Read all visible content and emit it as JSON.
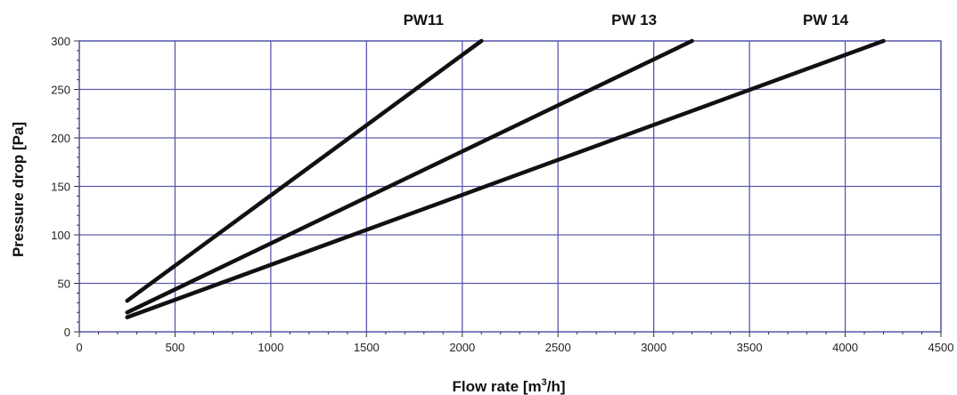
{
  "chart_data": {
    "type": "line",
    "title": "",
    "xlabel_main": "Flow rate [m",
    "xlabel_sup": "3",
    "xlabel_tail": "/h]",
    "ylabel": "Pressure drop [Pa]",
    "xlim": [
      0,
      4500
    ],
    "ylim": [
      0,
      300
    ],
    "x_ticks": [
      0,
      500,
      1000,
      1500,
      2000,
      2500,
      3000,
      3500,
      4000,
      4500
    ],
    "y_ticks": [
      0,
      50,
      100,
      150,
      200,
      250,
      300
    ],
    "grid": true,
    "legend": "none",
    "series": [
      {
        "name": "PW11",
        "x": [
          250,
          2100
        ],
        "y": [
          32,
          300
        ]
      },
      {
        "name": "PW 13",
        "x": [
          250,
          3200
        ],
        "y": [
          20,
          300
        ]
      },
      {
        "name": "PW 14",
        "x": [
          250,
          4200
        ],
        "y": [
          15,
          300
        ]
      }
    ],
    "colors": {
      "grid": "#5a5aae",
      "axis": "#5a5aae",
      "line": "#111111",
      "tick_text": "#222222"
    }
  }
}
